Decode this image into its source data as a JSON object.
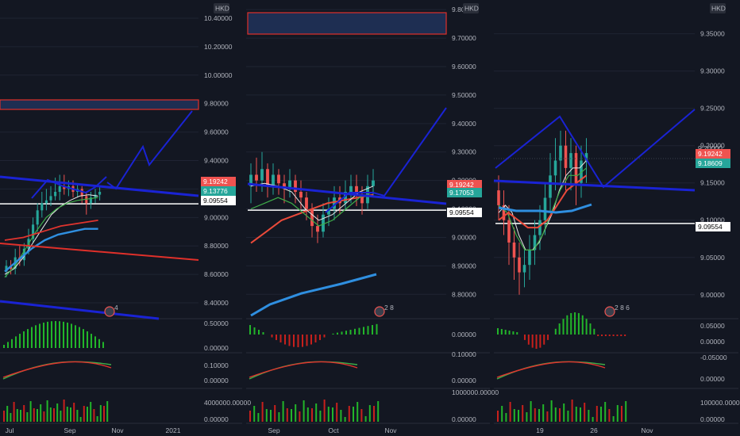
{
  "currency_label": "HKD",
  "colors": {
    "bg": "#131722",
    "grid": "#1f2433",
    "up": "#26a69a",
    "down": "#ef5350",
    "blue_line": "#1a23d4",
    "light_blue": "#2f8fe0",
    "red_line": "#e0302a",
    "white_line": "#ffffff",
    "hist_up": "#22b52a",
    "hist_down": "#c8201c"
  },
  "chart_data": [
    {
      "type": "candlestick",
      "panel": "left",
      "title": "",
      "y_ticks": [
        "10.40000",
        "10.20000",
        "10.00000",
        "9.80000",
        "9.60000",
        "9.40000",
        "9.20000",
        "9.00000",
        "8.80000",
        "8.60000",
        "8.40000"
      ],
      "x_ticks": [
        "Jul",
        "Sep",
        "Nov",
        "2021"
      ],
      "ylim": [
        8.3,
        10.5
      ],
      "price_tags": [
        {
          "value": "9.19242",
          "color": "#ef5350"
        },
        {
          "value": "9.13776",
          "color": "#26a69a"
        },
        {
          "value": "9.09554",
          "color": "#ffffff"
        }
      ],
      "candles": [
        [
          8.62,
          8.66,
          8.58,
          8.7
        ],
        [
          8.66,
          8.64,
          8.6,
          8.7
        ],
        [
          8.64,
          8.72,
          8.6,
          8.78
        ],
        [
          8.72,
          8.7,
          8.66,
          8.8
        ],
        [
          8.7,
          8.78,
          8.66,
          8.82
        ],
        [
          8.78,
          8.85,
          8.74,
          8.92
        ],
        [
          8.85,
          8.95,
          8.82,
          9.0
        ],
        [
          8.95,
          9.05,
          8.9,
          9.1
        ],
        [
          9.05,
          9.1,
          9.0,
          9.18
        ],
        [
          9.1,
          9.12,
          9.05,
          9.2
        ],
        [
          9.12,
          9.15,
          9.08,
          9.22
        ],
        [
          9.15,
          9.18,
          9.12,
          9.28
        ],
        [
          9.18,
          9.22,
          9.12,
          9.3
        ],
        [
          9.22,
          9.2,
          9.16,
          9.3
        ],
        [
          9.2,
          9.22,
          9.15,
          9.26
        ],
        [
          9.22,
          9.18,
          9.14,
          9.26
        ],
        [
          9.18,
          9.2,
          9.14,
          9.24
        ],
        [
          9.2,
          9.15,
          9.1,
          9.22
        ],
        [
          9.15,
          9.1,
          9.02,
          9.18
        ],
        [
          9.1,
          9.14,
          9.06,
          9.18
        ],
        [
          9.14,
          9.16,
          9.1,
          9.2
        ],
        [
          9.16,
          9.18,
          9.12,
          9.22
        ]
      ],
      "annotation": "4",
      "indicator_1": {
        "y_ticks": [
          "0.50000",
          "0.00000"
        ]
      },
      "indicator_2": {
        "y_ticks": [
          "0.10000",
          "0.00000"
        ]
      },
      "indicator_3": {
        "y_ticks": [
          "4000000.00000",
          "0.00000"
        ]
      }
    },
    {
      "type": "candlestick",
      "panel": "middle",
      "title": "",
      "y_ticks": [
        "9.80000",
        "9.70000",
        "9.60000",
        "9.50000",
        "9.40000",
        "9.30000",
        "9.20000",
        "9.10000",
        "9.00000",
        "8.90000",
        "8.80000"
      ],
      "x_ticks": [
        "Sep",
        "Oct",
        "Nov"
      ],
      "ylim": [
        8.72,
        9.82
      ],
      "price_tags": [
        {
          "value": "9.19242",
          "color": "#ef5350"
        },
        {
          "value": "9.17053",
          "color": "#26a69a"
        },
        {
          "value": "9.09554",
          "color": "#ffffff"
        }
      ],
      "candles": [
        [
          9.18,
          9.22,
          9.12,
          9.26
        ],
        [
          9.22,
          9.2,
          9.16,
          9.28
        ],
        [
          9.2,
          9.24,
          9.16,
          9.3
        ],
        [
          9.24,
          9.18,
          9.14,
          9.26
        ],
        [
          9.18,
          9.22,
          9.15,
          9.26
        ],
        [
          9.22,
          9.19,
          9.15,
          9.24
        ],
        [
          9.19,
          9.17,
          9.12,
          9.22
        ],
        [
          9.17,
          9.2,
          9.14,
          9.24
        ],
        [
          9.2,
          9.16,
          9.12,
          9.22
        ],
        [
          9.16,
          9.14,
          9.1,
          9.2
        ],
        [
          9.14,
          9.1,
          9.06,
          9.16
        ],
        [
          9.1,
          9.04,
          9.0,
          9.12
        ],
        [
          9.04,
          9.02,
          8.98,
          9.08
        ],
        [
          9.02,
          9.08,
          9.0,
          9.12
        ],
        [
          9.08,
          9.1,
          9.04,
          9.14
        ],
        [
          9.1,
          9.14,
          9.06,
          9.18
        ],
        [
          9.14,
          9.12,
          9.08,
          9.18
        ],
        [
          9.12,
          9.16,
          9.1,
          9.2
        ],
        [
          9.16,
          9.18,
          9.12,
          9.22
        ],
        [
          9.18,
          9.15,
          9.11,
          9.22
        ],
        [
          9.15,
          9.12,
          9.08,
          9.18
        ],
        [
          9.12,
          9.18,
          9.1,
          9.22
        ],
        [
          9.18,
          9.2,
          9.14,
          9.24
        ]
      ],
      "annotation": "2 8",
      "indicator_1": {
        "y_ticks": [
          "0.00000"
        ]
      },
      "indicator_2": {
        "y_ticks": [
          "0.10000",
          "0.00000"
        ]
      },
      "indicator_3": {
        "y_ticks": [
          "1000000.00000",
          "0.00000"
        ]
      }
    },
    {
      "type": "candlestick",
      "panel": "right",
      "title": "",
      "y_ticks": [
        "9.35000",
        "9.30000",
        "9.25000",
        "9.20000",
        "9.15000",
        "9.10000",
        "9.05000",
        "9.00000"
      ],
      "x_ticks": [
        "19",
        "26",
        "Nov"
      ],
      "ylim": [
        8.97,
        9.39
      ],
      "price_tags": [
        {
          "value": "9.20000",
          "color": "#9598a1"
        },
        {
          "value": "9.19242",
          "color": "#ef5350"
        },
        {
          "value": "9.18609",
          "color": "#26a69a"
        },
        {
          "value": "9.09554",
          "color": "#ffffff"
        }
      ],
      "candles": [
        [
          9.14,
          9.12,
          9.1,
          9.16
        ],
        [
          9.12,
          9.1,
          9.08,
          9.14
        ],
        [
          9.1,
          9.07,
          9.04,
          9.12
        ],
        [
          9.07,
          9.05,
          9.02,
          9.09
        ],
        [
          9.05,
          9.03,
          9.0,
          9.07
        ],
        [
          9.03,
          9.04,
          9.01,
          9.06
        ],
        [
          9.04,
          9.06,
          9.02,
          9.08
        ],
        [
          9.06,
          9.08,
          9.04,
          9.1
        ],
        [
          9.08,
          9.1,
          9.06,
          9.12
        ],
        [
          9.1,
          9.13,
          9.08,
          9.15
        ],
        [
          9.13,
          9.16,
          9.11,
          9.19
        ],
        [
          9.16,
          9.18,
          9.14,
          9.21
        ],
        [
          9.18,
          9.2,
          9.15,
          9.22
        ],
        [
          9.2,
          9.17,
          9.14,
          9.22
        ],
        [
          9.17,
          9.19,
          9.14,
          9.21
        ],
        [
          9.19,
          9.15,
          9.12,
          9.2
        ],
        [
          9.15,
          9.18,
          9.13,
          9.2
        ],
        [
          9.18,
          9.19,
          9.15,
          9.21
        ]
      ],
      "annotation": "2 8 6",
      "indicator_1": {
        "y_ticks": [
          "0.05000",
          "0.00000",
          "-0.05000"
        ]
      },
      "indicator_2": {
        "y_ticks": [
          "0.00000"
        ]
      },
      "indicator_3": {
        "y_ticks": [
          "100000.00000",
          "0.00000"
        ]
      }
    }
  ]
}
